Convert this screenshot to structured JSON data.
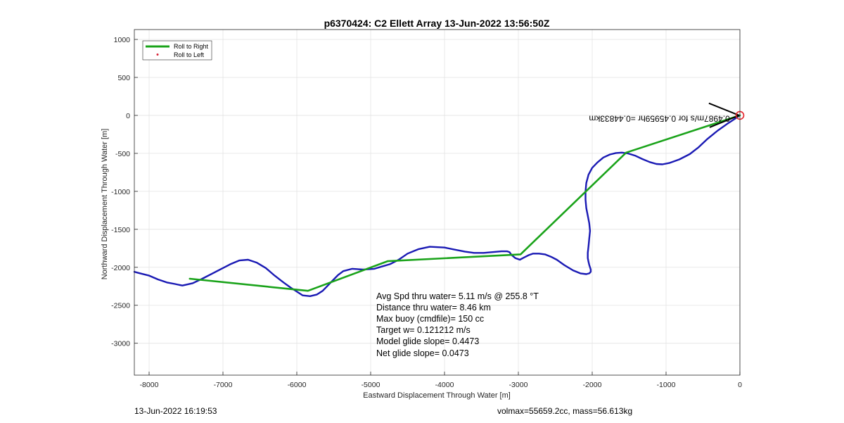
{
  "chart_data": {
    "type": "line",
    "title": "p6370424: C2 Ellett Array 13-Jun-2022 13:56:50Z",
    "xlabel": "Eastward Displacement Through Water [m]",
    "ylabel": "Northward Displacement Through Water [m]",
    "xlim": [
      -8200,
      0
    ],
    "ylim": [
      -3420,
      1130
    ],
    "xticks": [
      -8000,
      -7000,
      -6000,
      -5000,
      -4000,
      -3000,
      -2000,
      -1000,
      0
    ],
    "yticks": [
      1000,
      500,
      0,
      -500,
      -1000,
      -1500,
      -2000,
      -2500,
      -3000
    ],
    "grid": true,
    "legend_position": "top-left",
    "legend": [
      {
        "label": "Roll to Right",
        "color": "#1aa31a",
        "style": "line"
      },
      {
        "label": "Roll to Left",
        "color": "#d9253a",
        "style": "dot"
      }
    ],
    "series": [
      {
        "name": "Roll to Right",
        "color": "#1aa31a",
        "x": [
          0,
          -1540,
          -2970,
          -4770,
          -5850,
          -7450
        ],
        "y": [
          0,
          -490,
          -1830,
          -1920,
          -2310,
          -2150
        ]
      },
      {
        "color": "#1a1ab4",
        "x": [
          0,
          -60,
          -170,
          -300,
          -440,
          -560,
          -680,
          -820,
          -950,
          -1050,
          -1130,
          -1220,
          -1320,
          -1420,
          -1520,
          -1600,
          -1680,
          -1760,
          -1850,
          -1930,
          -2000,
          -2050,
          -2080,
          -2090,
          -2090,
          -2080,
          -2060,
          -2040,
          -2030,
          -2040,
          -2050,
          -2060,
          -2060,
          -2050,
          -2040,
          -2030,
          -2020,
          -2020,
          -2040,
          -2080,
          -2160,
          -2260,
          -2380,
          -2480,
          -2560,
          -2640,
          -2720,
          -2800,
          -2860,
          -2920,
          -2980,
          -3040,
          -3090,
          -3120,
          -3150,
          -3230,
          -3350,
          -3470,
          -3600,
          -3720,
          -3850,
          -4000,
          -4200,
          -4350,
          -4500,
          -4620,
          -4740,
          -4850,
          -4950,
          -5100,
          -5250,
          -5370,
          -5440,
          -5510,
          -5580,
          -5650,
          -5730,
          -5820,
          -5920,
          -6000,
          -6080,
          -6180,
          -6300,
          -6420,
          -6540,
          -6660,
          -6780,
          -6900,
          -7020,
          -7140,
          -7280,
          -7410,
          -7550,
          -7650,
          -7760,
          -7880,
          -8000,
          -8120,
          -8200
        ],
        "y": [
          0,
          -40,
          -110,
          -200,
          -310,
          -420,
          -510,
          -580,
          -625,
          -645,
          -640,
          -615,
          -575,
          -530,
          -500,
          -490,
          -495,
          -515,
          -555,
          -620,
          -690,
          -780,
          -890,
          -1000,
          -1110,
          -1220,
          -1320,
          -1420,
          -1520,
          -1620,
          -1720,
          -1810,
          -1880,
          -1930,
          -1970,
          -2000,
          -2030,
          -2060,
          -2080,
          -2090,
          -2080,
          -2040,
          -1970,
          -1900,
          -1860,
          -1830,
          -1820,
          -1820,
          -1840,
          -1870,
          -1900,
          -1880,
          -1840,
          -1800,
          -1790,
          -1790,
          -1800,
          -1810,
          -1810,
          -1795,
          -1770,
          -1740,
          -1730,
          -1760,
          -1820,
          -1900,
          -1960,
          -1990,
          -2020,
          -2030,
          -2020,
          -2050,
          -2100,
          -2170,
          -2240,
          -2310,
          -2360,
          -2380,
          -2370,
          -2320,
          -2270,
          -2200,
          -2110,
          -2010,
          -1940,
          -1900,
          -1910,
          -1960,
          -2020,
          -2080,
          -2150,
          -2210,
          -2240,
          -2220,
          -2200,
          -2160,
          -2110,
          -2080,
          -2060
        ]
      }
    ],
    "annotations": {
      "end_marker": {
        "x": 0,
        "y": 0,
        "color": "#e3242b"
      },
      "arrow": {
        "from": [
          -420,
          160
        ],
        "to": [
          -10,
          0
        ],
        "label": "0.4987m/s for 0.45959hr =0.44833km"
      }
    }
  },
  "stats": {
    "lines": [
      "Avg Spd thru water=  5.11 m/s @ 255.8 °T",
      "Distance thru water=  8.46 km",
      "Max buoy (cmdfile)= 150 cc",
      "Target w= 0.121212 m/s",
      "Model glide slope= 0.4473",
      "Net glide slope= 0.0473"
    ]
  },
  "footer": {
    "left": "13-Jun-2022 16:19:53",
    "right": "volmax=55659.2cc, mass=56.613kg"
  }
}
